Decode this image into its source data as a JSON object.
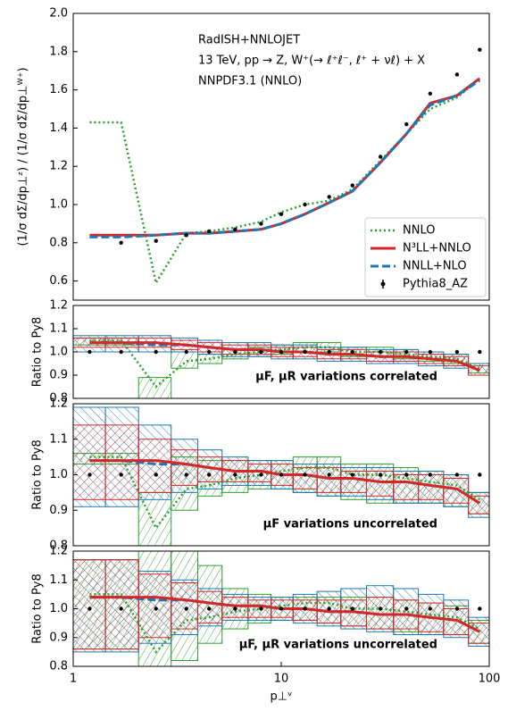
{
  "chart_data": [
    {
      "type": "line",
      "xscale": "log",
      "xlim": [
        1,
        100
      ],
      "ylim": [
        0.5,
        2.0
      ],
      "yticks": [
        0.6,
        0.8,
        {
          "value": 1,
          "label": "1.0"
        },
        1.2,
        1.4,
        1.6,
        1.8,
        {
          "value": 2,
          "label": "2.0"
        }
      ],
      "ylabel": "(1/σ dΣ/dp⊥ᶻ) / (1/σ dΣ/dp⊥ᵂ⁺)",
      "annotation": [
        "RadISH+NNLOJET",
        "13 TeV, pp → Z, W⁺(→ ℓ⁺ℓ⁻, ℓ⁺ + νℓ) + X",
        "NNPDF3.1 (NNLO)"
      ],
      "legend": "lower right",
      "x": [
        1.2,
        1.7,
        2.5,
        3.5,
        4.5,
        6,
        8,
        10,
        13,
        17,
        22,
        30,
        40,
        52,
        70,
        90
      ],
      "series": [
        {
          "name": "NNLO",
          "color": "#2ca02c",
          "linestyle": "dotted",
          "values": [
            1.43,
            1.43,
            0.59,
            0.85,
            0.86,
            0.88,
            0.91,
            0.96,
            1.0,
            1.02,
            1.08,
            1.23,
            1.37,
            1.5,
            1.56,
            1.66
          ]
        },
        {
          "name": "N³LL+NNLO",
          "color": "#d62728",
          "linestyle": "solid",
          "values": [
            0.84,
            0.84,
            0.84,
            0.85,
            0.85,
            0.86,
            0.87,
            0.9,
            0.95,
            1.01,
            1.07,
            1.22,
            1.37,
            1.53,
            1.57,
            1.66
          ]
        },
        {
          "name": "NNLL+NLO",
          "color": "#1f77b4",
          "linestyle": "dashed",
          "values": [
            0.83,
            0.83,
            0.84,
            0.85,
            0.85,
            0.86,
            0.87,
            0.9,
            0.95,
            1.01,
            1.07,
            1.22,
            1.37,
            1.52,
            1.57,
            1.65
          ]
        },
        {
          "name": "Pythia8_AZ",
          "color": "#000000",
          "kind": "points",
          "values": [
            null,
            0.8,
            0.81,
            0.84,
            0.86,
            0.87,
            0.9,
            0.95,
            1.0,
            1.04,
            1.1,
            1.25,
            1.42,
            1.58,
            1.68,
            1.81
          ]
        }
      ]
    },
    {
      "type": "line",
      "xscale": "log",
      "xlim": [
        1,
        100
      ],
      "ylim": [
        0.8,
        1.2
      ],
      "yticks": [
        0.8,
        0.9,
        {
          "value": 1,
          "label": "1.0"
        },
        1.1,
        1.2
      ],
      "ylabel": "Ratio to Py8",
      "annotation": "μF, μR variations correlated",
      "x": [
        1.2,
        1.7,
        2.5,
        3.5,
        4.5,
        6,
        8,
        10,
        13,
        17,
        22,
        30,
        40,
        52,
        70,
        90
      ],
      "series": [
        {
          "color": "#2ca02c",
          "linestyle": "dotted",
          "values": [
            1.05,
            1.05,
            0.85,
            0.96,
            0.97,
            0.99,
            1.0,
            1.01,
            1.02,
            1.02,
            1.0,
            1.0,
            0.99,
            0.98,
            0.97,
            0.93
          ],
          "lower": [
            1.03,
            1.03,
            0.8,
            0.93,
            0.95,
            0.97,
            0.98,
            0.99,
            1.0,
            1.0,
            0.98,
            0.98,
            0.97,
            0.96,
            0.95,
            0.91
          ],
          "upper": [
            1.06,
            1.06,
            0.89,
            1.0,
            0.99,
            1.01,
            1.02,
            1.03,
            1.04,
            1.04,
            1.02,
            1.02,
            1.01,
            1.0,
            0.99,
            0.95
          ]
        },
        {
          "color": "#1f77b4",
          "linestyle": "dashed",
          "values": [
            1.04,
            1.04,
            1.03,
            1.03,
            1.02,
            1.01,
            1.01,
            1.0,
            1.0,
            0.99,
            0.99,
            0.98,
            0.98,
            0.97,
            0.96,
            0.92
          ],
          "lower": [
            1.0,
            1.0,
            1.0,
            1.0,
            0.99,
            0.98,
            0.98,
            0.97,
            0.97,
            0.96,
            0.96,
            0.95,
            0.95,
            0.94,
            0.93,
            0.9
          ],
          "upper": [
            1.07,
            1.07,
            1.07,
            1.06,
            1.05,
            1.04,
            1.04,
            1.03,
            1.03,
            1.02,
            1.02,
            1.01,
            1.01,
            1.0,
            0.99,
            0.95
          ]
        },
        {
          "color": "#d62728",
          "linestyle": "solid",
          "values": [
            1.04,
            1.04,
            1.04,
            1.03,
            1.02,
            1.01,
            1.01,
            1.0,
            1.0,
            0.99,
            0.99,
            0.98,
            0.98,
            0.97,
            0.96,
            0.92
          ],
          "lower": [
            1.02,
            1.02,
            1.02,
            1.01,
            1.0,
            0.99,
            0.99,
            0.98,
            0.98,
            0.97,
            0.97,
            0.96,
            0.96,
            0.95,
            0.94,
            0.9
          ],
          "upper": [
            1.06,
            1.06,
            1.06,
            1.05,
            1.04,
            1.03,
            1.03,
            1.02,
            1.02,
            1.01,
            1.01,
            1.0,
            1.0,
            0.99,
            0.98,
            0.94
          ]
        },
        {
          "color": "#000000",
          "kind": "points",
          "values": [
            1,
            1,
            1,
            1,
            1,
            1,
            1,
            1,
            1,
            1,
            1,
            1,
            1,
            1,
            1,
            1
          ]
        }
      ]
    },
    {
      "type": "line",
      "xscale": "log",
      "xlim": [
        1,
        100
      ],
      "ylim": [
        0.8,
        1.2
      ],
      "yticks": [
        0.8,
        0.9,
        {
          "value": 1,
          "label": "1.0"
        },
        1.1,
        1.2
      ],
      "ylabel": "Ratio to Py8",
      "annotation": "μF variations uncorrelated",
      "x": [
        1.2,
        1.7,
        2.5,
        3.5,
        4.5,
        6,
        8,
        10,
        13,
        17,
        22,
        30,
        40,
        52,
        70,
        90
      ],
      "series": [
        {
          "color": "#2ca02c",
          "linestyle": "dotted",
          "values": [
            1.05,
            1.05,
            0.85,
            0.96,
            0.97,
            0.99,
            1.0,
            1.01,
            1.02,
            1.02,
            1.0,
            1.0,
            0.99,
            0.98,
            0.97,
            0.93
          ],
          "lower": [
            1.03,
            1.03,
            0.8,
            0.9,
            0.94,
            0.95,
            0.96,
            0.96,
            0.95,
            0.94,
            0.93,
            0.92,
            0.92,
            0.92,
            0.91,
            0.89
          ],
          "upper": [
            1.06,
            1.06,
            0.95,
            1.05,
            1.04,
            1.04,
            1.04,
            1.04,
            1.05,
            1.05,
            1.03,
            1.03,
            1.02,
            1.01,
            1.0,
            0.95
          ]
        },
        {
          "color": "#1f77b4",
          "linestyle": "dashed",
          "values": [
            1.04,
            1.04,
            1.03,
            1.03,
            1.02,
            1.01,
            1.01,
            1.0,
            1.0,
            0.99,
            0.99,
            0.98,
            0.98,
            0.97,
            0.96,
            0.92
          ],
          "lower": [
            0.91,
            0.91,
            0.93,
            0.95,
            0.96,
            0.97,
            0.97,
            0.96,
            0.95,
            0.94,
            0.94,
            0.93,
            0.92,
            0.92,
            0.91,
            0.88
          ],
          "upper": [
            1.19,
            1.19,
            1.14,
            1.1,
            1.07,
            1.05,
            1.04,
            1.04,
            1.03,
            1.03,
            1.02,
            1.02,
            1.01,
            1.01,
            1.0,
            0.95
          ]
        },
        {
          "color": "#d62728",
          "linestyle": "solid",
          "values": [
            1.04,
            1.04,
            1.04,
            1.03,
            1.02,
            1.01,
            1.01,
            1.0,
            1.0,
            0.99,
            0.99,
            0.98,
            0.98,
            0.97,
            0.96,
            0.92
          ],
          "lower": [
            0.93,
            0.93,
            0.95,
            0.97,
            0.98,
            0.98,
            0.98,
            0.97,
            0.96,
            0.95,
            0.95,
            0.94,
            0.93,
            0.93,
            0.92,
            0.89
          ],
          "upper": [
            1.14,
            1.14,
            1.1,
            1.07,
            1.05,
            1.04,
            1.03,
            1.03,
            1.02,
            1.02,
            1.01,
            1.01,
            1.0,
            1.0,
            0.99,
            0.94
          ]
        },
        {
          "color": "#000000",
          "kind": "points",
          "values": [
            1,
            1,
            1,
            1,
            1,
            1,
            1,
            1,
            1,
            1,
            1,
            1,
            1,
            1,
            1,
            1
          ]
        }
      ]
    },
    {
      "type": "line",
      "xscale": "log",
      "xlim": [
        1,
        100
      ],
      "ylim": [
        0.8,
        1.2
      ],
      "yticks": [
        0.8,
        0.9,
        {
          "value": 1,
          "label": "1.0"
        },
        1.1,
        1.2
      ],
      "ylabel": "Ratio to Py8",
      "annotation": "μF, μR variations uncorrelated",
      "xticks": [
        1,
        10,
        100
      ],
      "xlabel": "p⊥ᵛ",
      "x": [
        1.2,
        1.7,
        2.5,
        3.5,
        4.5,
        6,
        8,
        10,
        13,
        17,
        22,
        30,
        40,
        52,
        70,
        90
      ],
      "series": [
        {
          "color": "#2ca02c",
          "linestyle": "dotted",
          "values": [
            1.05,
            1.05,
            0.85,
            0.96,
            0.97,
            0.99,
            1.0,
            1.01,
            1.02,
            1.02,
            1.0,
            1.0,
            0.99,
            0.98,
            0.97,
            0.93
          ],
          "lower": [
            0.86,
            0.86,
            0.8,
            0.82,
            0.88,
            0.93,
            0.95,
            0.96,
            0.96,
            0.95,
            0.94,
            0.93,
            0.92,
            0.91,
            0.91,
            0.88
          ],
          "upper": [
            1.17,
            1.17,
            1.2,
            1.2,
            1.15,
            1.07,
            1.05,
            1.04,
            1.04,
            1.04,
            1.04,
            1.04,
            1.03,
            1.02,
            1.01,
            0.96
          ]
        },
        {
          "color": "#1f77b4",
          "linestyle": "dashed",
          "values": [
            1.04,
            1.04,
            1.03,
            1.03,
            1.02,
            1.01,
            1.01,
            1.0,
            1.0,
            0.99,
            0.99,
            0.98,
            0.98,
            0.97,
            0.96,
            0.92
          ],
          "lower": [
            0.85,
            0.85,
            0.88,
            0.91,
            0.94,
            0.96,
            0.96,
            0.96,
            0.95,
            0.94,
            0.93,
            0.92,
            0.91,
            0.91,
            0.9,
            0.87
          ],
          "upper": [
            1.17,
            1.17,
            1.13,
            1.1,
            1.07,
            1.05,
            1.04,
            1.04,
            1.05,
            1.06,
            1.07,
            1.08,
            1.07,
            1.05,
            1.03,
            0.97
          ]
        },
        {
          "color": "#d62728",
          "linestyle": "solid",
          "values": [
            1.04,
            1.04,
            1.04,
            1.03,
            1.02,
            1.01,
            1.01,
            1.0,
            1.0,
            0.99,
            0.99,
            0.98,
            0.98,
            0.97,
            0.96,
            0.92
          ],
          "lower": [
            0.86,
            0.86,
            0.9,
            0.93,
            0.95,
            0.97,
            0.97,
            0.97,
            0.96,
            0.95,
            0.94,
            0.93,
            0.93,
            0.92,
            0.91,
            0.88
          ],
          "upper": [
            1.17,
            1.17,
            1.12,
            1.09,
            1.06,
            1.04,
            1.03,
            1.03,
            1.03,
            1.03,
            1.03,
            1.04,
            1.03,
            1.02,
            1.0,
            0.95
          ]
        },
        {
          "color": "#000000",
          "kind": "points",
          "values": [
            1,
            1,
            1,
            1,
            1,
            1,
            1,
            1,
            1,
            1,
            1,
            1,
            1,
            1,
            1,
            1
          ]
        }
      ]
    }
  ]
}
